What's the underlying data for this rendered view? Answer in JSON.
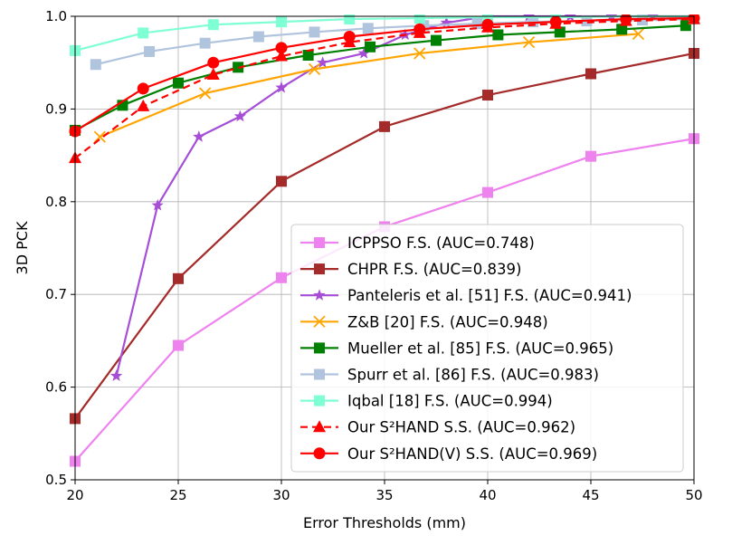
{
  "chart_data": {
    "type": "line",
    "title": "",
    "xlabel": "Error Thresholds (mm)",
    "ylabel": "3D PCK",
    "xlim": [
      20,
      50
    ],
    "ylim": [
      0.5,
      1.0
    ],
    "xticks": [
      20,
      25,
      30,
      35,
      40,
      45,
      50
    ],
    "yticks": [
      0.5,
      0.6,
      0.7,
      0.8,
      0.9,
      1.0
    ],
    "xtick_labels": [
      "20",
      "25",
      "30",
      "35",
      "40",
      "45",
      "50"
    ],
    "ytick_labels": [
      "0.5",
      "0.6",
      "0.7",
      "0.8",
      "0.9",
      "1.0"
    ],
    "grid": true,
    "legend_position": "lower-right",
    "series": [
      {
        "name": "ICPPSO F.S. (AUC=0.748)",
        "color": "#ee82ee",
        "marker": "square",
        "dashed": false,
        "x": [
          20,
          25,
          30,
          35,
          40,
          45,
          50
        ],
        "y": [
          0.52,
          0.645,
          0.718,
          0.773,
          0.81,
          0.849,
          0.868
        ]
      },
      {
        "name": "CHPR F.S. (AUC=0.839)",
        "color": "#a52a2a",
        "marker": "square",
        "dashed": false,
        "x": [
          20,
          25,
          30,
          35,
          40,
          45,
          50
        ],
        "y": [
          0.566,
          0.717,
          0.822,
          0.881,
          0.915,
          0.938,
          0.96
        ]
      },
      {
        "name": "Panteleris et al. [51] F.S. (AUC=0.941)",
        "color": "#a64fd6",
        "marker": "star",
        "dashed": false,
        "x": [
          22,
          24,
          26,
          28,
          30,
          32,
          34,
          36,
          38,
          40,
          42,
          44,
          46,
          48,
          50
        ],
        "y": [
          0.612,
          0.796,
          0.87,
          0.892,
          0.923,
          0.95,
          0.96,
          0.98,
          0.993,
          1.0,
          1.0,
          1.0,
          1.0,
          1.0,
          1.0
        ]
      },
      {
        "name": "Z&B [20] F.S. (AUC=0.948)",
        "color": "#ffa500",
        "marker": "x",
        "dashed": false,
        "x": [
          21.2,
          26.3,
          31.6,
          36.7,
          42.0,
          47.3
        ],
        "y": [
          0.87,
          0.917,
          0.943,
          0.96,
          0.972,
          0.981
        ]
      },
      {
        "name": "Mueller et al. [85] F.S. (AUC=0.965)",
        "color": "#008000",
        "marker": "square",
        "dashed": false,
        "x": [
          20,
          22.3,
          25.0,
          27.9,
          31.3,
          34.3,
          37.5,
          40.5,
          43.5,
          46.5,
          49.6
        ],
        "y": [
          0.877,
          0.904,
          0.928,
          0.945,
          0.958,
          0.967,
          0.974,
          0.98,
          0.983,
          0.986,
          0.99
        ]
      },
      {
        "name": "Spurr et al. [86] F.S. (AUC=0.983)",
        "color": "#b0c4de",
        "marker": "square",
        "dashed": false,
        "x": [
          21.0,
          23.6,
          26.3,
          28.9,
          31.6,
          34.2,
          36.9,
          39.5,
          42.2,
          44.8,
          47.5,
          50.0
        ],
        "y": [
          0.948,
          0.962,
          0.971,
          0.978,
          0.983,
          0.987,
          0.99,
          0.992,
          0.994,
          0.995,
          0.996,
          0.997
        ]
      },
      {
        "name": "Iqbal [18] F.S. (AUC=0.994)",
        "color": "#7fffd4",
        "marker": "square",
        "dashed": false,
        "x": [
          20,
          23.3,
          26.7,
          30.0,
          33.3,
          36.7,
          40.0,
          43.3,
          46.7,
          50.0
        ],
        "y": [
          0.963,
          0.982,
          0.991,
          0.994,
          0.997,
          0.998,
          0.999,
          0.999,
          1.0,
          1.0
        ]
      },
      {
        "name": "Our S²HAND S.S. (AUC=0.962)",
        "color": "#ff0000",
        "marker": "triangle",
        "dashed": true,
        "x": [
          20,
          23.3,
          26.7,
          30.0,
          33.3,
          36.7,
          40.0,
          43.3,
          46.7,
          50.0
        ],
        "y": [
          0.847,
          0.903,
          0.937,
          0.957,
          0.972,
          0.982,
          0.988,
          0.992,
          0.995,
          0.997
        ]
      },
      {
        "name": "Our S²HAND(V) S.S. (AUC=0.969)",
        "color": "#ff0000",
        "marker": "circle",
        "dashed": false,
        "x": [
          20,
          23.3,
          26.7,
          30.0,
          33.3,
          36.7,
          40.0,
          43.3,
          46.7,
          50.0
        ],
        "y": [
          0.876,
          0.922,
          0.95,
          0.966,
          0.978,
          0.986,
          0.991,
          0.994,
          0.997,
          0.998
        ]
      }
    ]
  }
}
